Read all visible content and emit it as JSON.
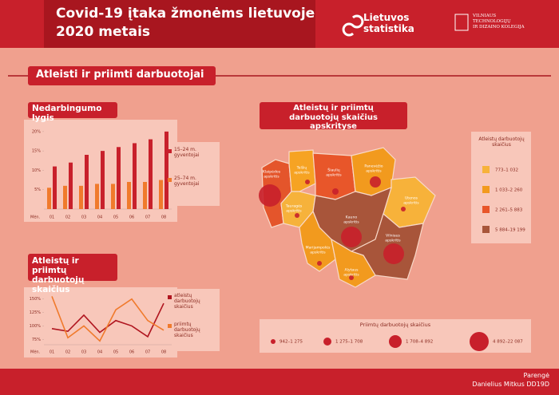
{
  "header": {
    "title": [
      "Covid-19 įtaka žmonėms lietuvoje",
      "2020 metais"
    ],
    "logo1": [
      "Lietuvos",
      "statistika"
    ],
    "logo2": [
      "VILNIAUS",
      "TECHNOLOGIJŲ",
      "IR DIZAINO KOLEGIJA"
    ]
  },
  "section_title": "Atleisti ir priimti darbuotojai",
  "chart_data": [
    {
      "type": "bar",
      "title": "Nedarbingumo lygis",
      "x_label": "Mėn.",
      "categories": [
        "01",
        "02",
        "03",
        "04",
        "05",
        "06",
        "07",
        "08"
      ],
      "series": [
        {
          "name": "15–24 m. gyventojai",
          "color": "#c8202b",
          "values": [
            11,
            12,
            14,
            15,
            16,
            17,
            18,
            20
          ]
        },
        {
          "name": "25–74 m. gyventojai",
          "color": "#f07a2c",
          "values": [
            5.5,
            6,
            6,
            6.5,
            6.5,
            7,
            7,
            7.5
          ]
        }
      ],
      "ylim": [
        0,
        21
      ],
      "yticks": [
        {
          "value": 5,
          "label": "5%"
        },
        {
          "value": 10,
          "label": "10%"
        },
        {
          "value": 15,
          "label": "15%"
        },
        {
          "value": 20,
          "label": "20%"
        }
      ],
      "grid": false
    },
    {
      "type": "line",
      "title": "Atleistų ir priimtų darbuotojų skaičius",
      "x_label": "Mėn.",
      "categories": [
        "01",
        "02",
        "03",
        "04",
        "05",
        "06",
        "07",
        "08"
      ],
      "series": [
        {
          "name": "atleistų darbuotojų skaičius",
          "color": "#b0151f",
          "values": [
            95,
            90,
            120,
            88,
            110,
            100,
            80,
            142
          ]
        },
        {
          "name": "priimtų darbuotojų skaičius",
          "color": "#f07a2c",
          "values": [
            155,
            78,
            100,
            72,
            130,
            150,
            110,
            92
          ]
        }
      ],
      "ylim": [
        65,
        160
      ],
      "yticks": [
        {
          "value": 75,
          "label": "75%"
        },
        {
          "value": 100,
          "label": "100%"
        },
        {
          "value": 125,
          "label": "125%"
        },
        {
          "value": 150,
          "label": "150%"
        }
      ],
      "grid": false
    }
  ],
  "map": {
    "title": "Atleistų ir priimtų darbuotojų skaičius apskrityse",
    "regions": [
      {
        "label": [
          "Klaipėdos",
          "apskritis"
        ],
        "color": "#e4552b"
      },
      {
        "label": [
          "Telšių",
          "apskritis"
        ],
        "color": "#f6a323"
      },
      {
        "label": [
          "Šiaulių",
          "apskritis"
        ],
        "color": "#e8562a"
      },
      {
        "label": [
          "Panevėžio",
          "apskritis"
        ],
        "color": "#f29a1e"
      },
      {
        "label": [
          "Utenos",
          "apskritis"
        ],
        "color": "#f7b23a"
      },
      {
        "label": [
          "Tauragės",
          "apskritis"
        ],
        "color": "#f6b23b"
      },
      {
        "label": [
          "Kauno",
          "apskritis"
        ],
        "color": "#a8553a"
      },
      {
        "label": [
          "Marijampolės",
          "apskritis"
        ],
        "color": "#f29a1e"
      },
      {
        "label": [
          "Vilniaus",
          "apskritis"
        ],
        "color": "#a8553a"
      },
      {
        "label": [
          "Alytaus",
          "apskritis"
        ],
        "color": "#f29a1e"
      }
    ]
  },
  "map_legend": {
    "title": "Atleistų darbuotojų skaičius",
    "items": [
      {
        "label": "773–1 032",
        "color": "#f7b23a"
      },
      {
        "label": "1 033–2 260",
        "color": "#f29a1e"
      },
      {
        "label": "2 261–5 883",
        "color": "#e8562a"
      },
      {
        "label": "5 884–19 199",
        "color": "#a8553a"
      }
    ]
  },
  "circle_legend": {
    "title": "Priimtų darbuotojų skaičius",
    "items": [
      "942–1 275",
      "1 275–1 708",
      "1 708–4 892",
      "4 892–22 087"
    ]
  },
  "footer": {
    "lines": [
      "Parengė",
      "Danielius Mitkus DD19D"
    ]
  }
}
